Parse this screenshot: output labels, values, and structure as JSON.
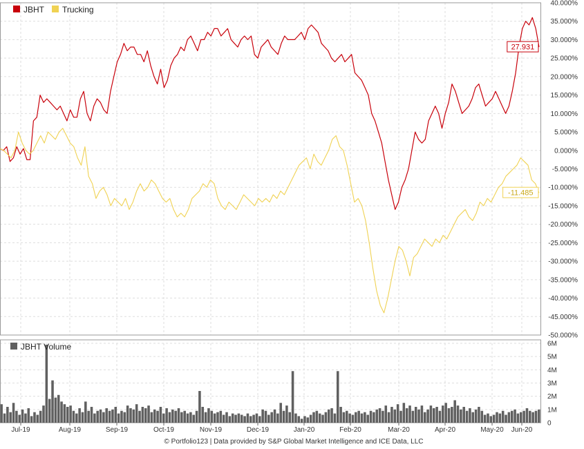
{
  "colors": {
    "jbht": "#c8000a",
    "trucking": "#f0d253",
    "volume": "#606060",
    "grid": "#dddddd",
    "frame": "#999999"
  },
  "footer": "© Portfolio123 | Data provided by S&P Global Market Intelligence and ICE Data, LLC",
  "chart_data": [
    {
      "type": "line",
      "ylim": [
        -50,
        40
      ],
      "yticks": [
        "40.000%",
        "35.000%",
        "30.000%",
        "25.000%",
        "20.000%",
        "15.000%",
        "10.000%",
        "5.000%",
        "0.000%",
        "-5.000%",
        "-10.000%",
        "-15.000%",
        "-20.000%",
        "-25.000%",
        "-30.000%",
        "-35.000%",
        "-40.000%",
        "-45.000%",
        "-50.000%"
      ],
      "xticks": [
        "Jul-19",
        "Aug-19",
        "Sep-19",
        "Oct-19",
        "Nov-19",
        "Dec-19",
        "Jan-20",
        "Feb-20",
        "Mar-20",
        "Apr-20",
        "May-20",
        "Jun-20"
      ],
      "grid": true,
      "legend": "top-left",
      "series": [
        {
          "name": "JBHT",
          "end_label": "27.931",
          "values": [
            0.5,
            0,
            1,
            -3,
            -2,
            1,
            -1,
            0.5,
            -2.5,
            -2.5,
            8,
            9,
            15,
            13,
            14,
            13,
            12,
            11,
            12,
            10,
            8,
            11,
            9,
            9,
            14,
            16,
            10,
            8,
            12,
            14,
            13,
            11,
            10,
            16,
            20,
            24,
            26,
            29,
            27,
            28,
            28,
            26,
            26,
            24,
            27,
            23,
            20,
            18,
            22,
            17,
            19,
            23,
            25,
            26,
            28,
            27,
            30,
            31,
            29,
            27,
            30,
            30,
            32,
            31,
            33,
            33,
            31,
            32,
            33,
            30,
            29,
            28,
            30,
            31,
            30,
            31,
            26,
            25,
            28,
            29,
            30,
            28,
            27,
            26,
            29,
            31,
            30,
            30,
            30,
            31,
            32,
            30,
            33,
            34,
            33,
            32,
            29,
            28,
            27,
            25,
            24,
            25,
            26,
            24,
            25,
            26,
            21,
            20,
            19,
            17,
            15,
            10,
            8,
            5,
            2,
            -3,
            -8,
            -12,
            -16,
            -14,
            -10,
            -8,
            -5,
            0,
            5,
            3,
            2,
            3,
            8,
            10,
            12,
            10,
            6,
            10,
            13,
            18,
            16,
            13,
            10,
            11,
            12,
            14,
            17,
            18,
            15,
            12,
            13,
            14,
            16,
            14,
            12,
            10,
            12,
            16,
            21,
            28,
            33,
            35,
            34,
            36,
            33,
            28
          ]
        },
        {
          "name": "Trucking",
          "end_label": "-11.485",
          "values": [
            0.5,
            0,
            -1,
            -2,
            0,
            5,
            2,
            0,
            -1,
            0,
            2,
            4,
            2,
            5,
            4,
            3,
            5,
            6,
            4,
            2,
            1,
            -2,
            -4,
            1,
            -7,
            -9,
            -13,
            -11,
            -10,
            -12,
            -15,
            -13,
            -14,
            -15,
            -13,
            -16,
            -14,
            -11,
            -9,
            -11,
            -10,
            -8,
            -9,
            -11,
            -13,
            -14,
            -13,
            -16,
            -18,
            -17,
            -18,
            -16,
            -13,
            -12,
            -11,
            -9,
            -10,
            -8,
            -9,
            -13,
            -15,
            -16,
            -14,
            -15,
            -16,
            -14,
            -12,
            -13,
            -14,
            -15,
            -13,
            -14,
            -13,
            -14,
            -12,
            -13,
            -11,
            -12,
            -10,
            -8,
            -6,
            -4,
            -3,
            -2,
            -5,
            -1,
            -3,
            -4,
            -2,
            0,
            3,
            4,
            1,
            0,
            -4,
            -9,
            -14,
            -13,
            -15,
            -19,
            -25,
            -32,
            -38,
            -42,
            -44,
            -40,
            -35,
            -30,
            -26,
            -27,
            -30,
            -34,
            -29,
            -28,
            -26,
            -24,
            -25,
            -26,
            -24,
            -25,
            -23,
            -24,
            -22,
            -20,
            -18,
            -17,
            -16,
            -18,
            -19,
            -17,
            -14,
            -15,
            -13,
            -14,
            -12,
            -10,
            -9,
            -7,
            -6,
            -5,
            -4,
            -2,
            -3,
            -4,
            -8,
            -9,
            -11.485
          ]
        }
      ]
    },
    {
      "type": "bar",
      "title": "JBHT Volume",
      "ylim": [
        0,
        6
      ],
      "yticks": [
        "6M",
        "5M",
        "4M",
        "3M",
        "2M",
        "1M",
        "0"
      ],
      "series": [
        {
          "name": "JBHT Volume",
          "values": [
            1.4,
            0.7,
            1.2,
            0.8,
            1.5,
            0.9,
            0.6,
            1.0,
            0.7,
            1.1,
            0.5,
            0.8,
            0.6,
            0.9,
            1.3,
            5.9,
            1.8,
            3.2,
            1.9,
            2.1,
            1.6,
            1.4,
            1.2,
            1.3,
            0.9,
            0.7,
            1.1,
            0.8,
            1.6,
            0.9,
            1.2,
            0.7,
            0.9,
            1.0,
            0.8,
            1.1,
            0.9,
            1.0,
            1.2,
            0.7,
            0.9,
            0.8,
            1.3,
            1.1,
            1.0,
            1.4,
            0.9,
            1.2,
            1.1,
            1.3,
            0.8,
            1.0,
            0.9,
            1.2,
            0.7,
            1.1,
            0.8,
            1.0,
            0.9,
            1.1,
            0.8,
            0.9,
            0.7,
            0.8,
            0.6,
            0.9,
            2.4,
            1.2,
            0.8,
            1.1,
            0.9,
            0.7,
            0.8,
            0.9,
            0.6,
            0.8,
            0.5,
            0.7,
            0.6,
            0.7,
            0.6,
            0.5,
            0.7,
            0.5,
            0.6,
            0.7,
            0.5,
            1.0,
            0.9,
            0.6,
            0.8,
            1.0,
            0.7,
            1.5,
            0.9,
            1.3,
            0.8,
            3.9,
            0.7,
            0.5,
            0.3,
            0.5,
            0.4,
            0.6,
            0.8,
            0.9,
            0.7,
            0.6,
            0.8,
            1.0,
            1.1,
            0.7,
            3.9,
            1.2,
            0.8,
            0.9,
            0.7,
            0.6,
            0.8,
            0.9,
            0.7,
            0.8,
            0.6,
            0.9,
            0.8,
            1.0,
            1.1,
            0.9,
            1.3,
            0.8,
            1.2,
            1.0,
            1.4,
            0.9,
            1.5,
            1.1,
            1.3,
            0.9,
            1.2,
            1.0,
            1.3,
            0.8,
            1.0,
            1.3,
            1.1,
            1.2,
            0.9,
            1.3,
            1.5,
            1.1,
            1.2,
            1.7,
            1.3,
            1.0,
            1.2,
            0.9,
            1.1,
            0.8,
            1.0,
            1.2,
            0.9,
            0.6,
            0.7,
            0.5,
            0.6,
            0.8,
            0.7,
            0.9,
            0.6,
            0.8,
            0.9,
            1.0,
            0.7,
            0.8,
            0.9,
            1.1,
            0.9,
            0.8,
            0.9,
            1.0
          ]
        }
      ]
    }
  ]
}
